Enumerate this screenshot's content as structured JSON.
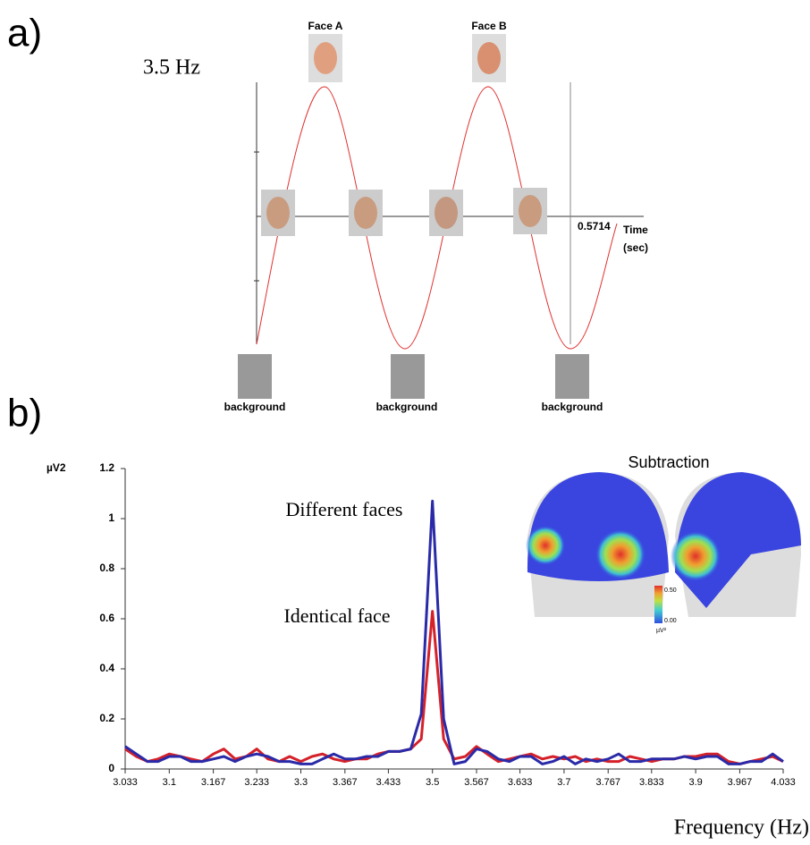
{
  "panel_a": {
    "label": "a)",
    "frequency": "3.5 Hz",
    "face_a": "Face A",
    "face_b": "Face B",
    "time_value": "0.5714",
    "time_label": "Time",
    "time_unit": "(sec)",
    "backgrounds": [
      "background",
      "background",
      "background"
    ]
  },
  "chart_data": {
    "type": "line",
    "panel_label": "b)",
    "y_label": "µV2",
    "x_label": "Frequency (Hz)",
    "annotations": [
      "Different faces",
      "Identical face"
    ],
    "inset": {
      "title": "Subtraction",
      "scale_max": "0.50",
      "scale_min": "0.00",
      "scale_unit": "µV²"
    },
    "x": [
      3.033,
      3.05,
      3.067,
      3.083,
      3.1,
      3.117,
      3.133,
      3.15,
      3.167,
      3.183,
      3.2,
      3.217,
      3.233,
      3.25,
      3.267,
      3.283,
      3.3,
      3.317,
      3.333,
      3.35,
      3.367,
      3.383,
      3.4,
      3.417,
      3.433,
      3.45,
      3.467,
      3.483,
      3.5,
      3.517,
      3.533,
      3.55,
      3.567,
      3.583,
      3.6,
      3.617,
      3.633,
      3.65,
      3.667,
      3.683,
      3.7,
      3.717,
      3.733,
      3.75,
      3.767,
      3.783,
      3.8,
      3.817,
      3.833,
      3.85,
      3.867,
      3.883,
      3.9,
      3.917,
      3.933,
      3.95,
      3.967,
      3.983,
      4.0,
      4.017,
      4.033
    ],
    "series": [
      {
        "name": "Identical face",
        "color": "#d4212a",
        "values": [
          0.08,
          0.05,
          0.03,
          0.04,
          0.06,
          0.05,
          0.04,
          0.03,
          0.06,
          0.08,
          0.04,
          0.05,
          0.08,
          0.04,
          0.03,
          0.05,
          0.03,
          0.05,
          0.06,
          0.04,
          0.03,
          0.04,
          0.04,
          0.06,
          0.07,
          0.07,
          0.08,
          0.12,
          0.63,
          0.12,
          0.04,
          0.05,
          0.09,
          0.06,
          0.03,
          0.04,
          0.05,
          0.06,
          0.04,
          0.05,
          0.04,
          0.05,
          0.03,
          0.04,
          0.03,
          0.03,
          0.05,
          0.04,
          0.03,
          0.04,
          0.04,
          0.05,
          0.05,
          0.06,
          0.06,
          0.03,
          0.02,
          0.03,
          0.04,
          0.05,
          0.03
        ]
      },
      {
        "name": "Different faces",
        "color": "#2a2aa8",
        "values": [
          0.09,
          0.06,
          0.03,
          0.03,
          0.05,
          0.05,
          0.03,
          0.03,
          0.04,
          0.05,
          0.03,
          0.05,
          0.06,
          0.05,
          0.03,
          0.03,
          0.02,
          0.02,
          0.04,
          0.06,
          0.04,
          0.04,
          0.05,
          0.05,
          0.07,
          0.07,
          0.08,
          0.22,
          1.07,
          0.2,
          0.02,
          0.03,
          0.08,
          0.07,
          0.04,
          0.03,
          0.05,
          0.05,
          0.02,
          0.03,
          0.05,
          0.02,
          0.04,
          0.03,
          0.04,
          0.06,
          0.03,
          0.03,
          0.04,
          0.04,
          0.04,
          0.05,
          0.04,
          0.05,
          0.05,
          0.02,
          0.02,
          0.03,
          0.03,
          0.06,
          0.03
        ]
      }
    ],
    "xlim": [
      3.033,
      4.033
    ],
    "xticks": [
      3.033,
      3.1,
      3.167,
      3.233,
      3.3,
      3.367,
      3.433,
      3.5,
      3.567,
      3.633,
      3.7,
      3.767,
      3.833,
      3.9,
      3.967,
      4.033
    ],
    "ylim": [
      0,
      1.2
    ],
    "yticks": [
      0,
      0.2,
      0.4,
      0.6,
      0.8,
      1,
      1.2
    ]
  }
}
